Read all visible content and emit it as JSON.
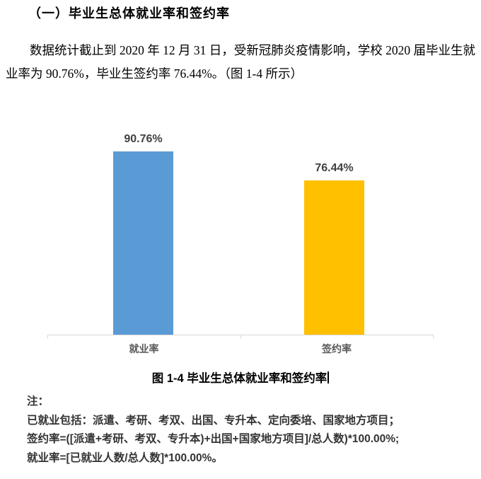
{
  "heading": "（一）毕业生总体就业率和签约率",
  "paragraph": "数据统计截止到 2020 年 12 月 31 日，受新冠肺炎疫情影响，学校 2020 届毕业生就业率为 90.76%，毕业生签约率 76.44%。（图 1-4 所示）",
  "chart_data": {
    "type": "bar",
    "categories": [
      "就业率",
      "签约率"
    ],
    "values": [
      90.76,
      76.44
    ],
    "value_labels": [
      "90.76%",
      "76.44%"
    ],
    "colors": [
      "#5B9BD5",
      "#FFC000"
    ],
    "title": "",
    "xlabel": "",
    "ylabel": "",
    "ylim": [
      0,
      100
    ],
    "grid": false,
    "legend": false,
    "axis_color": "#D9D9D9",
    "label_color": "#404040"
  },
  "caption": "图 1-4 毕业生总体就业率和签约率",
  "notes": {
    "label": "注：",
    "lines": [
      "已就业包括：派遣、考研、考双、出国、专升本、定向委培、国家地方项目；",
      "签约率=([派遣+考研、考双、专升本)+出国+国家地方项目]/总人数)*100.00%;",
      "就业率=[已就业人数/总人数]*100.00%。"
    ]
  }
}
